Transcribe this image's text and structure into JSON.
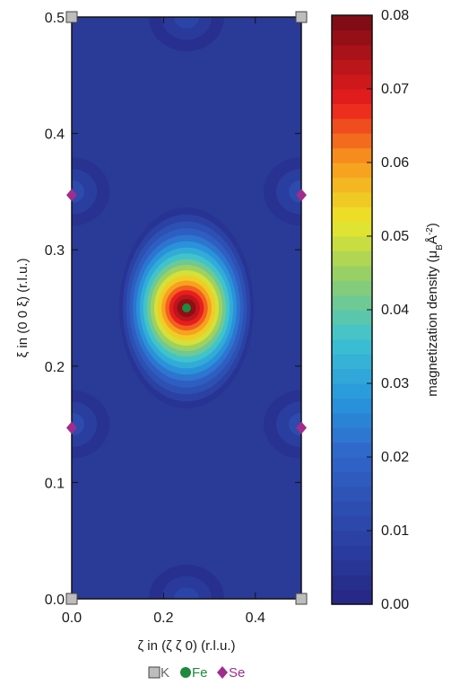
{
  "chart_data": {
    "type": "heatmap",
    "title": "",
    "xlabel": "ζ in (ζ ζ 0) (r.l.u.)",
    "ylabel": "ξ in (0 0 ξ) (r.l.u.)",
    "xlim": [
      0,
      0.5
    ],
    "ylim": [
      0,
      0.5
    ],
    "x_ticks": [
      0.0,
      0.2,
      0.4
    ],
    "x_tick_labels": [
      "0.0",
      "0.2",
      "0.4"
    ],
    "y_ticks": [
      0.0,
      0.1,
      0.2,
      0.3,
      0.4,
      0.5
    ],
    "y_tick_labels": [
      "0.0",
      "0.1",
      "0.2",
      "0.3",
      "0.4",
      "0.5"
    ],
    "colorbar": {
      "label_main": "magnetization density (μ",
      "label_sub": "B",
      "label_after": "Å",
      "label_sup": "-2",
      "label_close": ")",
      "range": [
        0.0,
        0.08
      ],
      "ticks": [
        0.0,
        0.01,
        0.02,
        0.03,
        0.04,
        0.05,
        0.06,
        0.07,
        0.08
      ],
      "tick_labels": [
        "0.00",
        "0.01",
        "0.02",
        "0.03",
        "0.04",
        "0.05",
        "0.06",
        "0.07",
        "0.08"
      ],
      "colormap": "jet"
    },
    "density_features": [
      {
        "name": "Fe peak",
        "x": 0.25,
        "y": 0.25,
        "peak": 0.082
      },
      {
        "name": "Se lobe",
        "x": 0.0,
        "y": 0.35,
        "peak": 0.012
      },
      {
        "name": "Se lobe",
        "x": 0.0,
        "y": 0.15,
        "peak": 0.012
      },
      {
        "name": "Se lobe",
        "x": 0.5,
        "y": 0.35,
        "peak": 0.012
      },
      {
        "name": "Se lobe",
        "x": 0.5,
        "y": 0.15,
        "peak": 0.012
      },
      {
        "name": "K lobe",
        "x": 0.25,
        "y": 0.5,
        "peak": 0.01
      },
      {
        "name": "K lobe",
        "x": 0.25,
        "y": 0.0,
        "peak": 0.01
      }
    ],
    "atoms": {
      "K": {
        "label": "K",
        "color": "#bdbdbd",
        "marker": "square",
        "positions": [
          [
            0.0,
            0.5
          ],
          [
            0.5,
            0.5
          ],
          [
            0.0,
            0.0
          ],
          [
            0.5,
            0.0
          ]
        ]
      },
      "Fe": {
        "label": "Fe",
        "color": "#1e8a3c",
        "marker": "circle",
        "positions": [
          [
            0.25,
            0.25
          ]
        ]
      },
      "Se": {
        "label": "Se",
        "color": "#a02c8c",
        "marker": "diamond",
        "positions": [
          [
            0.0,
            0.347
          ],
          [
            0.5,
            0.347
          ],
          [
            0.0,
            0.147
          ],
          [
            0.5,
            0.147
          ]
        ]
      }
    },
    "legend_placement": "bottom-center",
    "grid": false
  }
}
